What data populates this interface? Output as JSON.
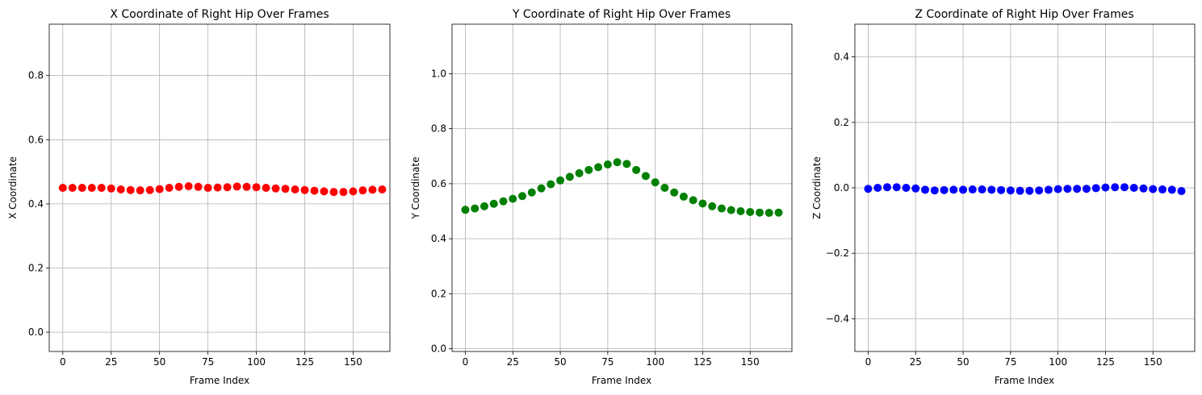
{
  "chart_data": [
    {
      "type": "scatter",
      "title": "X Coordinate of Right Hip Over Frames",
      "xlabel": "Frame Index",
      "ylabel": "X Coordinate",
      "xlim": [
        -7,
        169
      ],
      "ylim": [
        -0.06,
        0.96
      ],
      "xticks": [
        0,
        25,
        50,
        75,
        100,
        125,
        150
      ],
      "yticks": [
        0.0,
        0.2,
        0.4,
        0.6,
        0.8
      ],
      "ytick_labels": [
        "0.0",
        "0.2",
        "0.4",
        "0.6",
        "0.8"
      ],
      "grid": true,
      "color": "#ff0000",
      "series": [
        {
          "x": [
            0,
            5,
            10,
            15,
            20,
            25,
            30,
            35,
            40,
            45,
            50,
            55,
            60,
            65,
            70,
            75,
            80,
            85,
            90,
            95,
            100,
            105,
            110,
            115,
            120,
            125,
            130,
            135,
            140,
            145,
            150,
            155,
            160,
            165
          ],
          "values": [
            0.45,
            0.45,
            0.45,
            0.45,
            0.45,
            0.448,
            0.445,
            0.443,
            0.442,
            0.443,
            0.446,
            0.45,
            0.453,
            0.455,
            0.453,
            0.45,
            0.451,
            0.452,
            0.454,
            0.453,
            0.452,
            0.45,
            0.448,
            0.447,
            0.445,
            0.443,
            0.441,
            0.439,
            0.437,
            0.437,
            0.439,
            0.442,
            0.444,
            0.445
          ]
        }
      ]
    },
    {
      "type": "scatter",
      "title": "Y Coordinate of Right Hip Over Frames",
      "xlabel": "Frame Index",
      "ylabel": "Y Coordinate",
      "xlim": [
        -7,
        172
      ],
      "ylim": [
        -0.01,
        1.18
      ],
      "xticks": [
        0,
        25,
        50,
        75,
        100,
        125,
        150
      ],
      "yticks": [
        0.0,
        0.2,
        0.4,
        0.6,
        0.8,
        1.0
      ],
      "ytick_labels": [
        "0.0",
        "0.2",
        "0.4",
        "0.6",
        "0.8",
        "1.0"
      ],
      "grid": true,
      "color": "#008000",
      "series": [
        {
          "x": [
            0,
            5,
            10,
            15,
            20,
            25,
            30,
            35,
            40,
            45,
            50,
            55,
            60,
            65,
            70,
            75,
            80,
            85,
            90,
            95,
            100,
            105,
            110,
            115,
            120,
            125,
            130,
            135,
            140,
            145,
            150,
            155,
            160,
            165
          ],
          "values": [
            0.505,
            0.51,
            0.518,
            0.527,
            0.536,
            0.545,
            0.555,
            0.568,
            0.583,
            0.598,
            0.612,
            0.625,
            0.638,
            0.65,
            0.66,
            0.67,
            0.678,
            0.672,
            0.65,
            0.628,
            0.605,
            0.585,
            0.568,
            0.553,
            0.54,
            0.528,
            0.518,
            0.51,
            0.504,
            0.5,
            0.497,
            0.495,
            0.494,
            0.495
          ]
        }
      ]
    },
    {
      "type": "scatter",
      "title": "Z Coordinate of Right Hip Over Frames",
      "xlabel": "Frame Index",
      "ylabel": "Z Coordinate",
      "xlim": [
        -7,
        172
      ],
      "ylim": [
        -0.5,
        0.5
      ],
      "xticks": [
        0,
        25,
        50,
        75,
        100,
        125,
        150
      ],
      "yticks": [
        -0.4,
        -0.2,
        0.0,
        0.2,
        0.4
      ],
      "ytick_labels": [
        "−0.4",
        "−0.2",
        "0.0",
        "0.2",
        "0.4"
      ],
      "grid": true,
      "color": "#0000ff",
      "series": [
        {
          "x": [
            0,
            5,
            10,
            15,
            20,
            25,
            30,
            35,
            40,
            45,
            50,
            55,
            60,
            65,
            70,
            75,
            80,
            85,
            90,
            95,
            100,
            105,
            110,
            115,
            120,
            125,
            130,
            135,
            140,
            145,
            150,
            155,
            160,
            165
          ],
          "values": [
            -0.003,
            0.0,
            0.002,
            0.002,
            0.0,
            -0.002,
            -0.006,
            -0.008,
            -0.007,
            -0.006,
            -0.006,
            -0.005,
            -0.005,
            -0.006,
            -0.007,
            -0.008,
            -0.009,
            -0.009,
            -0.008,
            -0.006,
            -0.004,
            -0.003,
            -0.003,
            -0.003,
            -0.001,
            0.001,
            0.002,
            0.002,
            0.0,
            -0.002,
            -0.004,
            -0.005,
            -0.006,
            -0.01
          ]
        }
      ]
    }
  ]
}
